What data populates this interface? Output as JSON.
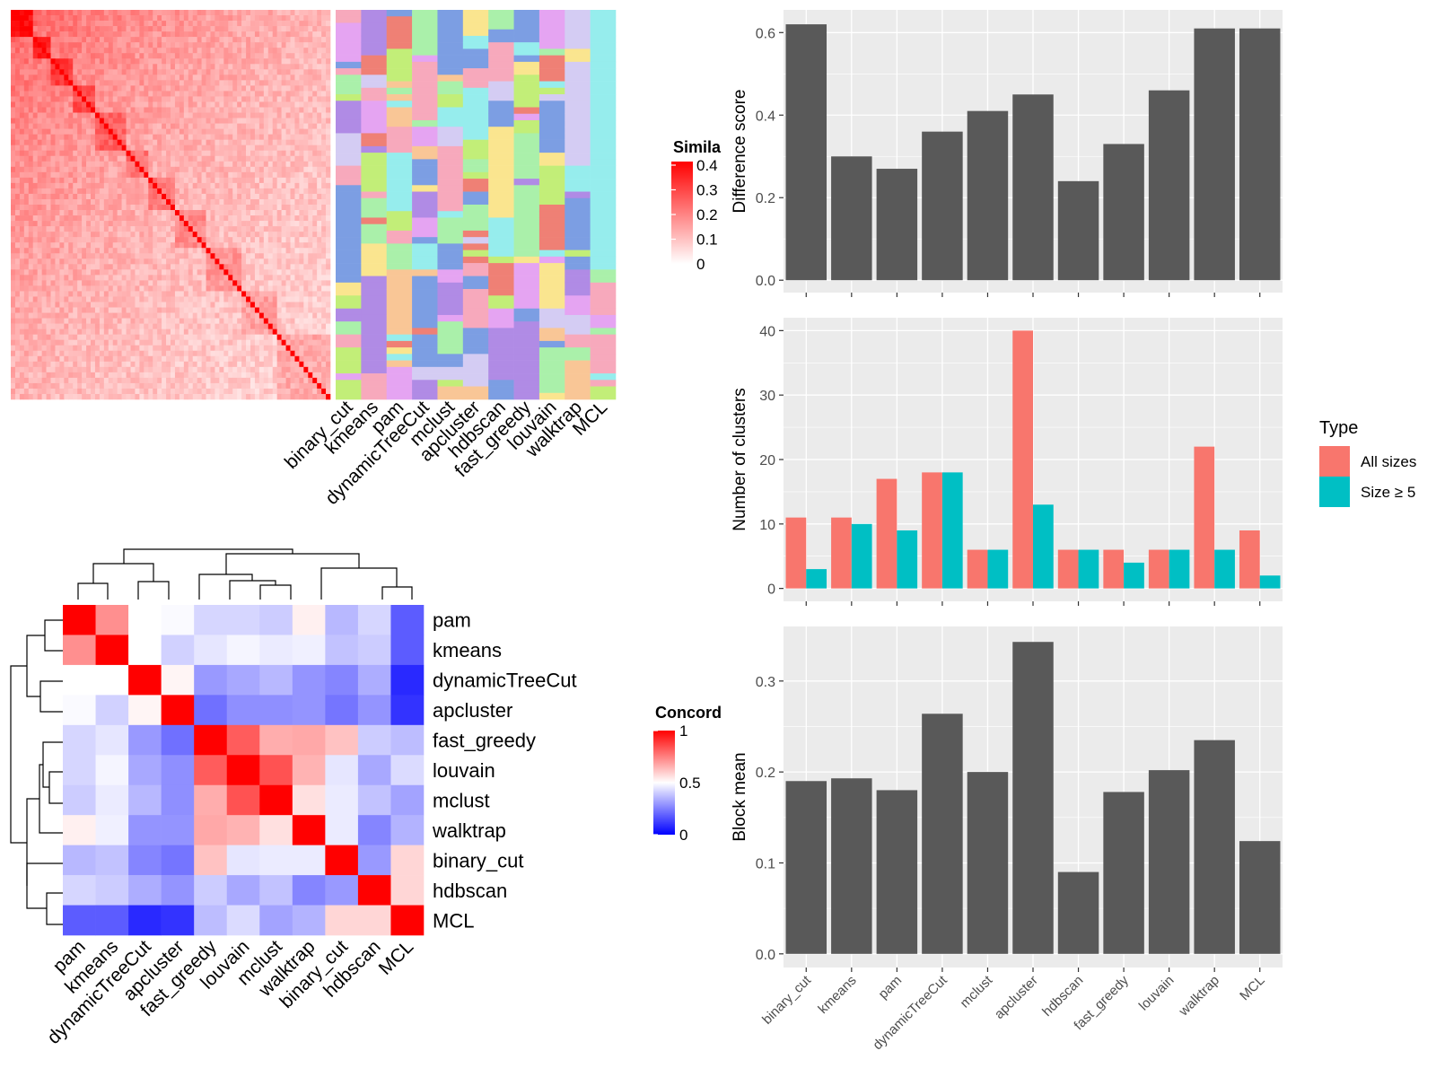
{
  "colors": {
    "panel_bg": "#EBEBEB",
    "grid_line": "#FFFFFF",
    "bar_fill": "#595959",
    "type_all": "#F8766D",
    "type_size5": "#00BFC4",
    "sim_high": "#FF0000",
    "conc_low": "#0000FF",
    "conc_high": "#FF0000",
    "cluster_palette": [
      "#96EDED",
      "#F7A9BC",
      "#C2EE78",
      "#7C9EE3",
      "#FAE58F",
      "#B08BE5",
      "#EF8075",
      "#F9C696",
      "#D4CCF3",
      "#E5A4F2",
      "#AAF0AA"
    ]
  },
  "methods_bar": [
    "binary_cut",
    "kmeans",
    "pam",
    "dynamicTreeCut",
    "mclust",
    "apcluster",
    "hdbscan",
    "fast_greedy",
    "louvain",
    "walktrap",
    "MCL"
  ],
  "partition_columns": [
    "binary_cut",
    "kmeans",
    "pam",
    "dynamicTreeCut",
    "mclust",
    "apcluster",
    "hdbscan",
    "fast_greedy",
    "louvain",
    "walktrap",
    "MCL"
  ],
  "similarity_legend": {
    "title": "Similarity",
    "title_visible": "Simila",
    "ticks": [
      "0",
      "0.1",
      "0.2",
      "0.3",
      "0.4"
    ]
  },
  "concordance_legend": {
    "title": "Concordance",
    "title_visible": "Concord",
    "ticks": [
      "0",
      "0.5",
      "1"
    ]
  },
  "type_legend": {
    "title": "Type",
    "items": [
      "All sizes",
      "Size ≥ 5"
    ]
  },
  "chart_data": [
    {
      "type": "bar",
      "categories": [
        "binary_cut",
        "kmeans",
        "pam",
        "dynamicTreeCut",
        "mclust",
        "apcluster",
        "hdbscan",
        "fast_greedy",
        "louvain",
        "walktrap",
        "MCL"
      ],
      "values": [
        0.62,
        0.3,
        0.27,
        0.36,
        0.41,
        0.45,
        0.24,
        0.33,
        0.46,
        0.61,
        0.61
      ],
      "ylabel": "Difference score",
      "ylim": [
        -0.03,
        0.655
      ],
      "yticks": [
        0,
        0.2,
        0.4,
        0.6
      ],
      "ytick_labels": [
        "0.0",
        "0.2",
        "0.4",
        "0.6"
      ],
      "grid": true
    },
    {
      "type": "bar",
      "categories": [
        "binary_cut",
        "kmeans",
        "pam",
        "dynamicTreeCut",
        "mclust",
        "apcluster",
        "hdbscan",
        "fast_greedy",
        "louvain",
        "walktrap",
        "MCL"
      ],
      "series": [
        {
          "name": "All sizes",
          "values": [
            11,
            11,
            17,
            18,
            6,
            40,
            6,
            6,
            6,
            22,
            9
          ]
        },
        {
          "name": "Size ≥ 5",
          "values": [
            3,
            10,
            9,
            18,
            6,
            13,
            6,
            4,
            6,
            6,
            2
          ]
        }
      ],
      "ylabel": "Number of clusters",
      "ylim": [
        -2,
        42
      ],
      "yticks": [
        0,
        10,
        20,
        30,
        40
      ],
      "ytick_labels": [
        "0",
        "10",
        "20",
        "30",
        "40"
      ],
      "legend": "right",
      "grid": true
    },
    {
      "type": "bar",
      "categories": [
        "binary_cut",
        "kmeans",
        "pam",
        "dynamicTreeCut",
        "mclust",
        "apcluster",
        "hdbscan",
        "fast_greedy",
        "louvain",
        "walktrap",
        "MCL"
      ],
      "values": [
        0.19,
        0.193,
        0.18,
        0.264,
        0.2,
        0.343,
        0.09,
        0.178,
        0.202,
        0.235,
        0.124
      ],
      "ylabel": "Block mean",
      "ylim": [
        -0.015,
        0.36
      ],
      "yticks": [
        0,
        0.1,
        0.2,
        0.3
      ],
      "ytick_labels": [
        "0.0",
        "0.1",
        "0.2",
        "0.3"
      ],
      "grid": true
    },
    {
      "type": "heatmap",
      "rows": [
        "pam",
        "kmeans",
        "dynamicTreeCut",
        "apcluster",
        "fast_greedy",
        "louvain",
        "mclust",
        "walktrap",
        "binary_cut",
        "hdbscan",
        "MCL"
      ],
      "cols": [
        "pam",
        "kmeans",
        "dynamicTreeCut",
        "apcluster",
        "fast_greedy",
        "louvain",
        "mclust",
        "walktrap",
        "binary_cut",
        "hdbscan",
        "MCL"
      ],
      "values": [
        [
          1.0,
          0.72,
          0.5,
          0.49,
          0.42,
          0.42,
          0.4,
          0.53,
          0.36,
          0.42,
          0.18
        ],
        [
          0.72,
          1.0,
          0.5,
          0.41,
          0.45,
          0.48,
          0.46,
          0.47,
          0.38,
          0.4,
          0.18
        ],
        [
          0.5,
          0.5,
          1.0,
          0.52,
          0.3,
          0.33,
          0.36,
          0.29,
          0.26,
          0.34,
          0.08
        ],
        [
          0.49,
          0.41,
          0.52,
          1.0,
          0.22,
          0.28,
          0.28,
          0.29,
          0.23,
          0.29,
          0.1
        ],
        [
          0.42,
          0.45,
          0.3,
          0.22,
          1.0,
          0.82,
          0.66,
          0.67,
          0.62,
          0.4,
          0.37
        ],
        [
          0.42,
          0.48,
          0.33,
          0.28,
          0.82,
          1.0,
          0.84,
          0.65,
          0.45,
          0.33,
          0.43
        ],
        [
          0.4,
          0.46,
          0.36,
          0.28,
          0.66,
          0.84,
          1.0,
          0.56,
          0.46,
          0.38,
          0.32
        ],
        [
          0.53,
          0.47,
          0.29,
          0.29,
          0.67,
          0.65,
          0.56,
          1.0,
          0.46,
          0.26,
          0.35
        ],
        [
          0.36,
          0.38,
          0.26,
          0.23,
          0.62,
          0.45,
          0.46,
          0.46,
          1.0,
          0.3,
          0.58
        ],
        [
          0.42,
          0.4,
          0.34,
          0.29,
          0.4,
          0.33,
          0.38,
          0.26,
          0.3,
          1.0,
          0.58
        ],
        [
          0.18,
          0.18,
          0.08,
          0.1,
          0.37,
          0.43,
          0.32,
          0.35,
          0.58,
          0.58,
          1.0
        ]
      ],
      "ylim": [
        0,
        1
      ]
    }
  ]
}
